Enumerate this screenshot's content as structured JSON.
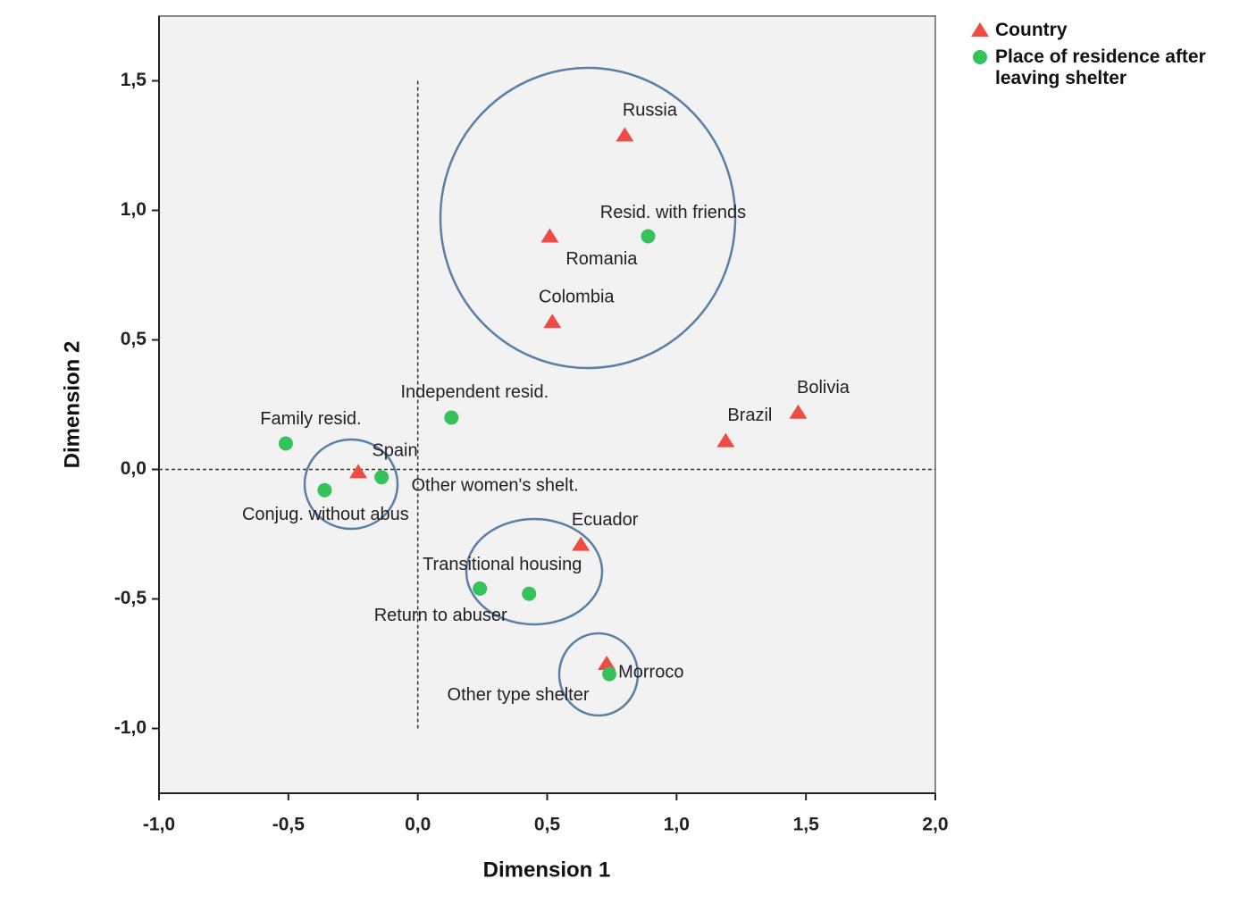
{
  "chart_data": {
    "type": "scatter",
    "x_label": "Dimension 1",
    "y_label": "Dimension 2",
    "xlim": [
      -1.0,
      2.0
    ],
    "ylim": [
      -1.25,
      1.75
    ],
    "xticks": [
      {
        "value": -1.0,
        "label": "-1,0"
      },
      {
        "value": -0.5,
        "label": "-0,5"
      },
      {
        "value": 0,
        "label": "0,0"
      },
      {
        "value": 0.5,
        "label": "0,5"
      },
      {
        "value": 1.0,
        "label": "1,0"
      },
      {
        "value": 1.5,
        "label": "1,5"
      },
      {
        "value": 2.0,
        "label": "2,0"
      }
    ],
    "yticks": [
      {
        "value": -1.0,
        "label": "-1,0"
      },
      {
        "value": -0.5,
        "label": "-0,5"
      },
      {
        "value": 0,
        "label": "0,0"
      },
      {
        "value": 0.5,
        "label": "0,5"
      },
      {
        "value": 1.0,
        "label": "1,0"
      },
      {
        "value": 1.5,
        "label": "1,5"
      }
    ],
    "legend": "top-right",
    "series": [
      {
        "name": "Country",
        "color": "#ee4b45",
        "marker": "triangle",
        "labels": [
          "Russia",
          "Romania",
          "Colombia",
          "Bolivia",
          "Brazil",
          "Spain",
          "Ecuador",
          "Morroco"
        ],
        "x": [
          0.8,
          0.51,
          0.52,
          1.47,
          1.19,
          -0.23,
          0.63,
          0.73
        ],
        "y": [
          1.29,
          0.9,
          0.57,
          0.22,
          0.11,
          -0.01,
          -0.29,
          -0.75
        ]
      },
      {
        "name": "Place of residence after leaving shelter",
        "color": "#35c25a",
        "marker": "circle",
        "labels": [
          "Resid. with friends",
          "Independent resid.",
          "Family resid.",
          "Other women's shelt.",
          "Conjug. without abus",
          "Transitional housing",
          "Return to abuser",
          "Other type shelter"
        ],
        "x": [
          0.89,
          0.13,
          -0.51,
          -0.14,
          -0.36,
          0.43,
          0.24,
          0.74
        ],
        "y": [
          0.9,
          0.2,
          0.1,
          -0.03,
          -0.08,
          -0.48,
          -0.46,
          -0.79
        ]
      }
    ]
  }
}
